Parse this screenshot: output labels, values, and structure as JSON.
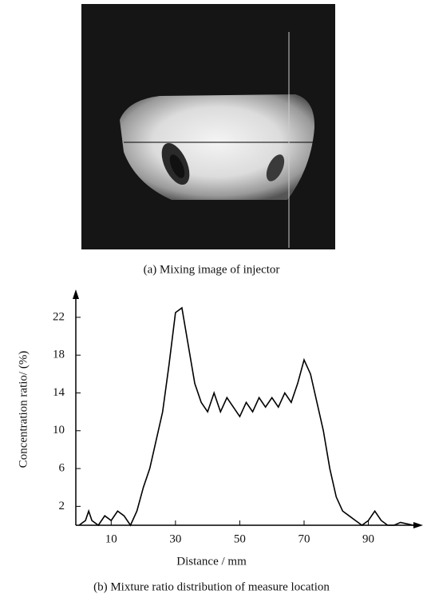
{
  "image_caption": "(a) Mixing image of injector",
  "chart_data": {
    "type": "line",
    "title": "(b) Mixture ratio distribution of measure location",
    "xlabel": "Distance / mm",
    "ylabel": "Concentration ratio/ (%)",
    "x": [
      0,
      2,
      3,
      4,
      6,
      8,
      10,
      12,
      14,
      16,
      18,
      20,
      22,
      24,
      26,
      28,
      30,
      32,
      33,
      34,
      36,
      38,
      40,
      42,
      44,
      46,
      48,
      50,
      52,
      54,
      56,
      58,
      60,
      62,
      64,
      66,
      68,
      70,
      72,
      74,
      76,
      78,
      80,
      82,
      84,
      86,
      88,
      90,
      92,
      94,
      96,
      98,
      100,
      104
    ],
    "values": [
      0,
      0.5,
      1.5,
      0.5,
      0,
      1,
      0.5,
      1.5,
      1,
      0,
      1.5,
      4,
      6,
      9,
      12,
      17,
      22.5,
      23,
      21,
      19,
      15,
      13,
      12,
      14,
      12,
      13.5,
      12.5,
      11.5,
      13,
      12,
      13.5,
      12.5,
      13.5,
      12.5,
      14,
      13,
      15,
      17.5,
      16,
      13,
      10,
      6,
      3,
      1.5,
      1,
      0.5,
      0,
      0.5,
      1.5,
      0.5,
      0,
      0,
      0.3,
      0
    ],
    "color": "#000000",
    "xlim": [
      -1,
      106
    ],
    "xticks": [
      10,
      30,
      50,
      70,
      90
    ],
    "ylim": [
      0,
      24.7
    ],
    "yticks": [
      2,
      6,
      10,
      14,
      18,
      22
    ]
  }
}
